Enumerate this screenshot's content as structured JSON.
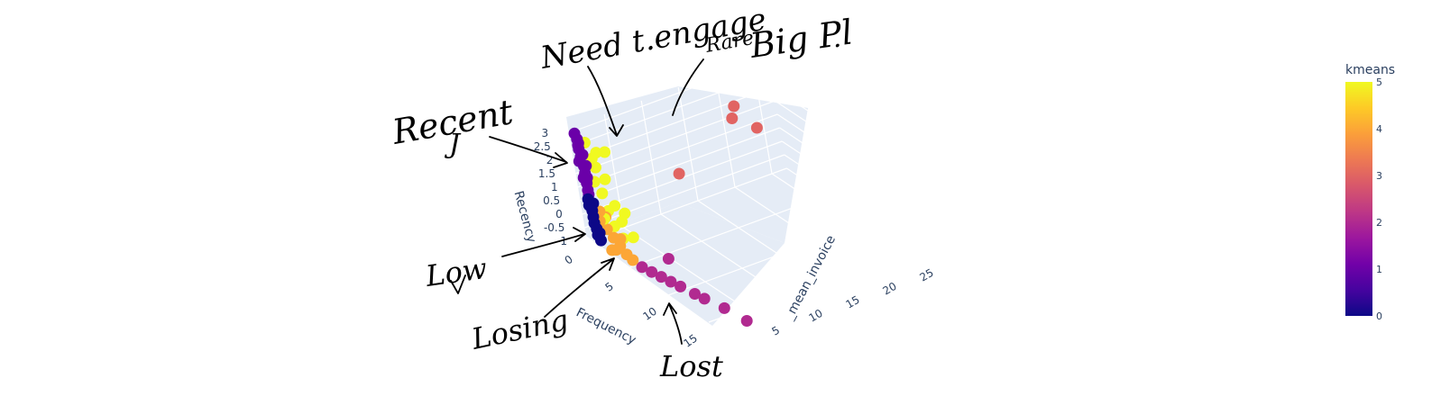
{
  "chart_data": {
    "type": "scatter",
    "subtype": "scatter3d",
    "axes": {
      "x": {
        "title": "Frequency",
        "ticks": [
          "0",
          "5",
          "10",
          "15"
        ],
        "range": [
          0,
          17
        ]
      },
      "y": {
        "title": "_mean_invoice",
        "ticks": [
          "5",
          "10",
          "15",
          "20",
          "25"
        ],
        "range": [
          0,
          27
        ]
      },
      "z": {
        "title": "Recency",
        "ticks": [
          "-1",
          "-0.5",
          "0",
          "0.5",
          "1",
          "1.5",
          "2",
          "2.5",
          "3"
        ],
        "range": [
          -1,
          3.2
        ]
      }
    },
    "colorbar": {
      "title": "kmeans",
      "ticks": [
        "0",
        "1",
        "2",
        "3",
        "4",
        "5"
      ],
      "range": [
        0,
        5
      ],
      "colors": [
        "#0d0887",
        "#46039f",
        "#7201a8",
        "#9c179e",
        "#bd3786",
        "#d8576b",
        "#ed7953",
        "#fb9f3a",
        "#fdca26",
        "#f0f921"
      ]
    },
    "cluster_colors": {
      "0": "#0d0887",
      "1": "#6a00a8",
      "2": "#b12a90",
      "3": "#e16462",
      "4": "#fca636",
      "5": "#f0f921"
    },
    "points": [
      {
        "x": 0.3,
        "y": 0.5,
        "z": 3.0,
        "cluster": 1
      },
      {
        "x": 0.4,
        "y": 0.6,
        "z": 2.8,
        "cluster": 1
      },
      {
        "x": 0.5,
        "y": 0.5,
        "z": 2.6,
        "cluster": 1
      },
      {
        "x": 0.3,
        "y": 0.7,
        "z": 2.4,
        "cluster": 1
      },
      {
        "x": 0.6,
        "y": 0.5,
        "z": 2.2,
        "cluster": 1
      },
      {
        "x": 0.4,
        "y": 0.4,
        "z": 2.0,
        "cluster": 1
      },
      {
        "x": 0.5,
        "y": 0.8,
        "z": 1.8,
        "cluster": 1
      },
      {
        "x": 0.7,
        "y": 0.6,
        "z": 1.6,
        "cluster": 1
      },
      {
        "x": 0.5,
        "y": 0.5,
        "z": 1.4,
        "cluster": 1
      },
      {
        "x": 0.6,
        "y": 0.7,
        "z": 1.2,
        "cluster": 1
      },
      {
        "x": 0.8,
        "y": 0.5,
        "z": 1.0,
        "cluster": 1
      },
      {
        "x": 0.7,
        "y": 0.6,
        "z": 0.8,
        "cluster": 1
      },
      {
        "x": 0.6,
        "y": 0.5,
        "z": 2.7,
        "cluster": 1
      },
      {
        "x": 0.8,
        "y": 0.6,
        "z": 2.3,
        "cluster": 1
      },
      {
        "x": 0.9,
        "y": 0.7,
        "z": 1.9,
        "cluster": 1
      },
      {
        "x": 1.0,
        "y": 0.5,
        "z": 1.5,
        "cluster": 1
      },
      {
        "x": 0.5,
        "y": 0.6,
        "z": 0.6,
        "cluster": 0
      },
      {
        "x": 0.6,
        "y": 0.5,
        "z": 0.4,
        "cluster": 0
      },
      {
        "x": 0.7,
        "y": 0.7,
        "z": 0.2,
        "cluster": 0
      },
      {
        "x": 0.8,
        "y": 0.6,
        "z": 0.0,
        "cluster": 0
      },
      {
        "x": 0.9,
        "y": 0.5,
        "z": -0.2,
        "cluster": 0
      },
      {
        "x": 1.0,
        "y": 0.6,
        "z": -0.4,
        "cluster": 0
      },
      {
        "x": 1.1,
        "y": 0.5,
        "z": -0.6,
        "cluster": 0
      },
      {
        "x": 1.2,
        "y": 0.7,
        "z": -0.8,
        "cluster": 0
      },
      {
        "x": 0.9,
        "y": 0.8,
        "z": 0.5,
        "cluster": 0
      },
      {
        "x": 1.3,
        "y": 0.6,
        "z": -0.5,
        "cluster": 0
      },
      {
        "x": 1.5,
        "y": 0.5,
        "z": 2.9,
        "cluster": 5
      },
      {
        "x": 2.5,
        "y": 0.8,
        "z": 2.7,
        "cluster": 5
      },
      {
        "x": 3.5,
        "y": 1.0,
        "z": 2.9,
        "cluster": 5
      },
      {
        "x": 2.0,
        "y": 0.6,
        "z": 2.4,
        "cluster": 5
      },
      {
        "x": 2.2,
        "y": 0.7,
        "z": 2.1,
        "cluster": 5
      },
      {
        "x": 3.0,
        "y": 0.9,
        "z": 1.8,
        "cluster": 5
      },
      {
        "x": 1.8,
        "y": 0.6,
        "z": 1.5,
        "cluster": 5
      },
      {
        "x": 2.5,
        "y": 0.7,
        "z": 1.2,
        "cluster": 5
      },
      {
        "x": 3.5,
        "y": 1.1,
        "z": 0.9,
        "cluster": 5
      },
      {
        "x": 4.5,
        "y": 1.3,
        "z": 0.8,
        "cluster": 5
      },
      {
        "x": 2.8,
        "y": 0.8,
        "z": 0.6,
        "cluster": 5
      },
      {
        "x": 4.0,
        "y": 1.2,
        "z": 0.4,
        "cluster": 5
      },
      {
        "x": 3.2,
        "y": 0.9,
        "z": 0.1,
        "cluster": 5
      },
      {
        "x": 5.0,
        "y": 1.4,
        "z": 0.0,
        "cluster": 5
      },
      {
        "x": 4.0,
        "y": 1.0,
        "z": -0.2,
        "cluster": 5
      },
      {
        "x": 2.2,
        "y": 0.7,
        "z": 0.2,
        "cluster": 5
      },
      {
        "x": 1.6,
        "y": 0.6,
        "z": 0.0,
        "cluster": 4
      },
      {
        "x": 2.2,
        "y": 0.8,
        "z": -0.2,
        "cluster": 4
      },
      {
        "x": 2.8,
        "y": 0.9,
        "z": -0.4,
        "cluster": 4
      },
      {
        "x": 3.4,
        "y": 1.0,
        "z": -0.6,
        "cluster": 4
      },
      {
        "x": 4.0,
        "y": 1.1,
        "z": -0.8,
        "cluster": 4
      },
      {
        "x": 3.0,
        "y": 0.8,
        "z": -0.8,
        "cluster": 4
      },
      {
        "x": 2.5,
        "y": 0.7,
        "z": -0.9,
        "cluster": 4
      },
      {
        "x": 4.6,
        "y": 1.2,
        "z": -0.9,
        "cluster": 4
      },
      {
        "x": 3.6,
        "y": 1.0,
        "z": -0.3,
        "cluster": 4
      },
      {
        "x": 1.8,
        "y": 0.6,
        "z": 0.4,
        "cluster": 4
      },
      {
        "x": 2.4,
        "y": 0.7,
        "z": 0.3,
        "cluster": 4
      },
      {
        "x": 5.5,
        "y": 1.4,
        "z": -1.0,
        "cluster": 2
      },
      {
        "x": 6.5,
        "y": 1.6,
        "z": -1.0,
        "cluster": 2
      },
      {
        "x": 7.5,
        "y": 1.8,
        "z": -1.0,
        "cluster": 2
      },
      {
        "x": 8.5,
        "y": 2.0,
        "z": -1.0,
        "cluster": 2
      },
      {
        "x": 9.5,
        "y": 2.2,
        "z": -1.0,
        "cluster": 2
      },
      {
        "x": 11.0,
        "y": 2.5,
        "z": -1.0,
        "cluster": 2
      },
      {
        "x": 12.0,
        "y": 2.7,
        "z": -1.0,
        "cluster": 2
      },
      {
        "x": 14.0,
        "y": 3.2,
        "z": -1.0,
        "cluster": 2
      },
      {
        "x": 16.5,
        "y": 3.5,
        "z": -1.0,
        "cluster": 2
      },
      {
        "x": 6.0,
        "y": 4.5,
        "z": -0.9,
        "cluster": 2
      },
      {
        "x": 4.0,
        "y": 18.0,
        "z": 3.0,
        "cluster": 3
      },
      {
        "x": 4.0,
        "y": 17.5,
        "z": 2.6,
        "cluster": 3
      },
      {
        "x": 4.5,
        "y": 20.0,
        "z": 2.1,
        "cluster": 3
      },
      {
        "x": 3.5,
        "y": 10.0,
        "z": 1.2,
        "cluster": 3
      }
    ]
  },
  "annotations": {
    "recent": "Recent",
    "recent_mark": "J",
    "need_engage": "Need t.engage",
    "rare_big": "Rare",
    "rare_big_2": "Big Pl",
    "rare_big_dot": ".",
    "low": "Low",
    "losing": "Losing",
    "lost": "Lost"
  }
}
